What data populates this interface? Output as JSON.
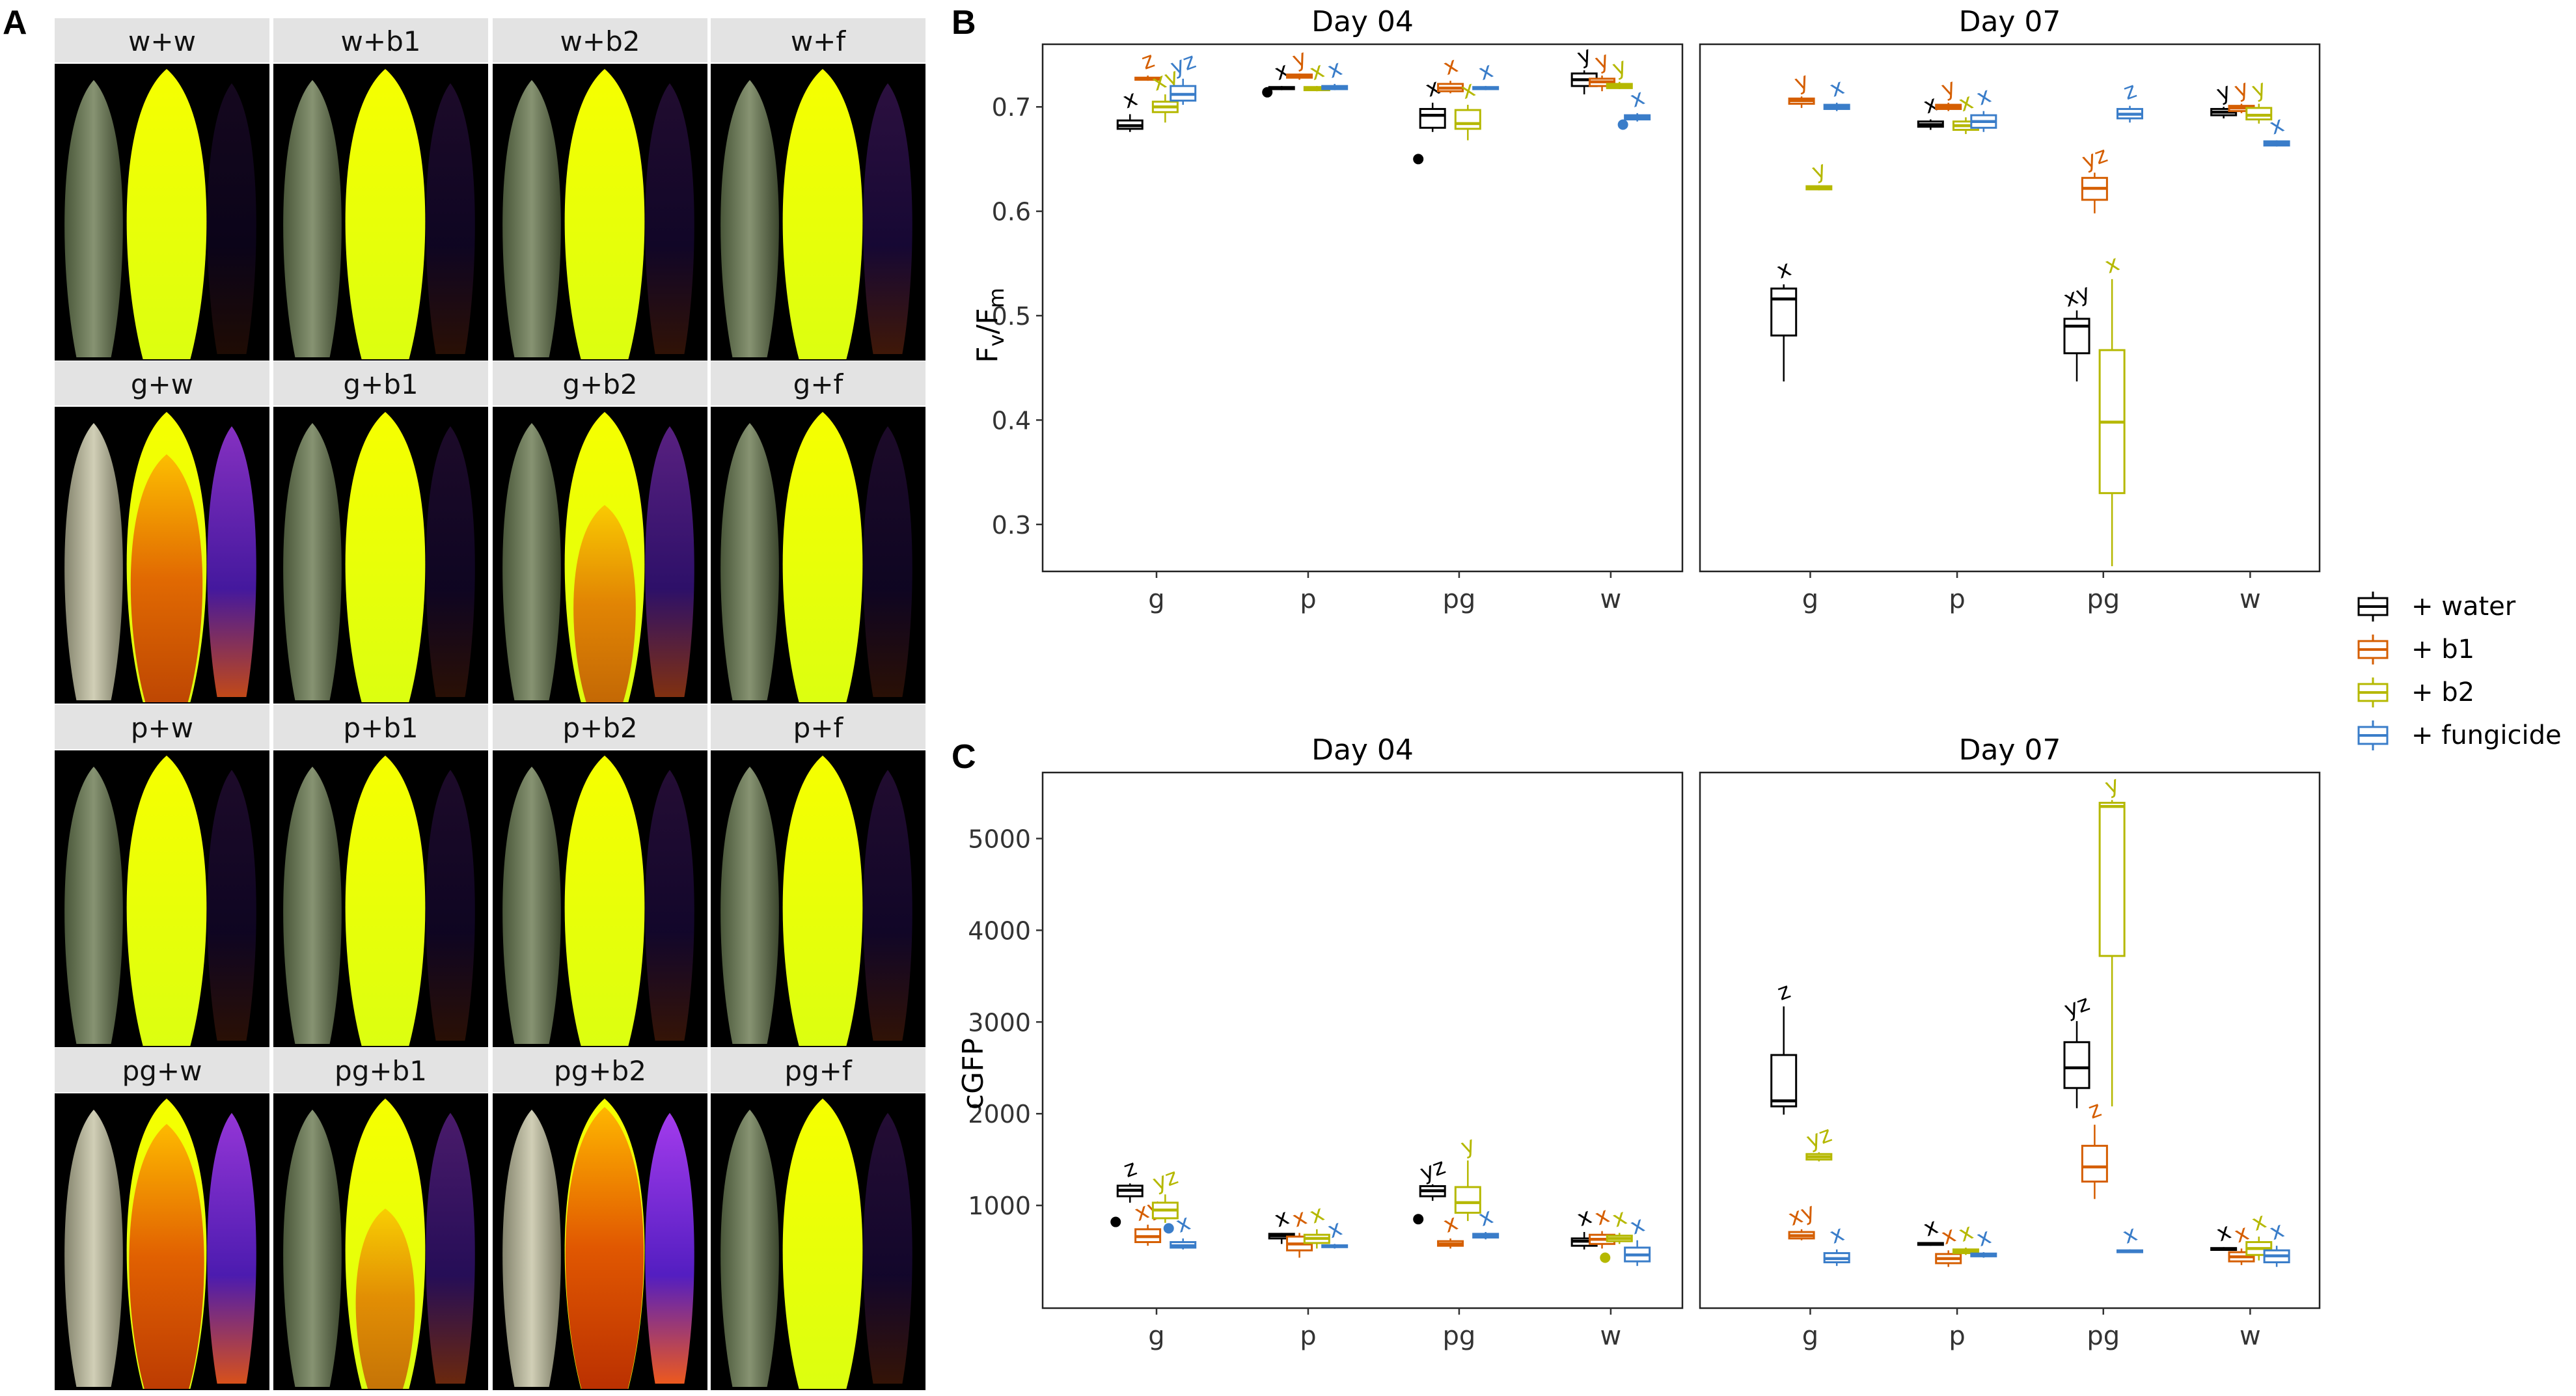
{
  "panel_labels": [
    "A",
    "B",
    "C"
  ],
  "image_grid": {
    "rows": [
      [
        "w+w",
        "w+b1",
        "w+b2",
        "w+f"
      ],
      [
        "g+w",
        "g+b1",
        "g+b2",
        "g+f"
      ],
      [
        "p+w",
        "p+b1",
        "p+b2",
        "p+f"
      ],
      [
        "pg+w",
        "pg+b1",
        "pg+b2",
        "pg+f"
      ]
    ],
    "severity": [
      [
        0.0,
        0.05,
        0.08,
        0.15
      ],
      [
        0.75,
        0.05,
        0.45,
        0.05
      ],
      [
        0.05,
        0.05,
        0.1,
        0.08
      ],
      [
        0.85,
        0.35,
        0.95,
        0.1
      ]
    ]
  },
  "legend": {
    "items": [
      {
        "label": "+ water",
        "color": "#000000"
      },
      {
        "label": "+ b1",
        "color": "#D55E00"
      },
      {
        "label": "+ b2",
        "color": "#B5B800"
      },
      {
        "label": "+ fungicide",
        "color": "#3A7DC9"
      }
    ]
  },
  "chart_data": [
    {
      "type": "boxplot",
      "panel": "B",
      "ylabel_main": "F",
      "ylabel_sub1": "v",
      "ylabel_sep": "/F",
      "ylabel_sub2": "m",
      "ylim": [
        0.255,
        0.76
      ],
      "yticks": [
        0.3,
        0.4,
        0.5,
        0.6,
        0.7
      ],
      "ytick_labels": [
        "0.3",
        "0.4",
        "0.5",
        "0.6",
        "0.7"
      ],
      "categories": [
        "g",
        "p",
        "pg",
        "w"
      ],
      "series_names": [
        "+ water",
        "+ b1",
        "+ b2",
        "+ fungicide"
      ],
      "facets": [
        {
          "title": "Day 04",
          "boxes": [
            [
              {
                "min": 0.676,
                "q1": 0.679,
                "med": 0.682,
                "q3": 0.687,
                "max": 0.693,
                "out": [],
                "letter": "x"
              },
              {
                "min": 0.725,
                "q1": 0.726,
                "med": 0.727,
                "q3": 0.728,
                "max": 0.73,
                "out": [],
                "letter": "z"
              },
              {
                "min": 0.685,
                "q1": 0.695,
                "med": 0.7,
                "q3": 0.705,
                "max": 0.712,
                "out": [],
                "letter": "xy"
              },
              {
                "min": 0.702,
                "q1": 0.706,
                "med": 0.712,
                "q3": 0.72,
                "max": 0.727,
                "out": [],
                "letter": "yz"
              }
            ],
            [
              {
                "min": 0.716,
                "q1": 0.717,
                "med": 0.718,
                "q3": 0.719,
                "max": 0.72,
                "out": [
                  0.714
                ],
                "letter": "x"
              },
              {
                "min": 0.726,
                "q1": 0.728,
                "med": 0.729,
                "q3": 0.731,
                "max": 0.732,
                "out": [],
                "letter": "y"
              },
              {
                "min": 0.715,
                "q1": 0.716,
                "med": 0.717,
                "q3": 0.719,
                "max": 0.72,
                "out": [],
                "letter": "x"
              },
              {
                "min": 0.716,
                "q1": 0.717,
                "med": 0.718,
                "q3": 0.72,
                "max": 0.722,
                "out": [],
                "letter": "x"
              }
            ],
            [
              {
                "min": 0.676,
                "q1": 0.68,
                "med": 0.692,
                "q3": 0.698,
                "max": 0.704,
                "out": [
                  0.65
                ],
                "letter": "x"
              },
              {
                "min": 0.713,
                "q1": 0.715,
                "med": 0.718,
                "q3": 0.722,
                "max": 0.725,
                "out": [],
                "letter": "x"
              },
              {
                "min": 0.668,
                "q1": 0.679,
                "med": 0.684,
                "q3": 0.697,
                "max": 0.702,
                "out": [],
                "letter": "x"
              },
              {
                "min": 0.716,
                "q1": 0.717,
                "med": 0.718,
                "q3": 0.719,
                "max": 0.72,
                "out": [],
                "letter": "x"
              }
            ],
            [
              {
                "min": 0.712,
                "q1": 0.72,
                "med": 0.726,
                "q3": 0.732,
                "max": 0.735,
                "out": [],
                "letter": "y"
              },
              {
                "min": 0.715,
                "q1": 0.72,
                "med": 0.724,
                "q3": 0.727,
                "max": 0.73,
                "out": [],
                "letter": "y"
              },
              {
                "min": 0.717,
                "q1": 0.718,
                "med": 0.72,
                "q3": 0.722,
                "max": 0.724,
                "out": [],
                "letter": "y"
              },
              {
                "min": 0.686,
                "q1": 0.688,
                "med": 0.69,
                "q3": 0.692,
                "max": 0.694,
                "out": [
                  0.683
                ],
                "letter": "x"
              }
            ]
          ]
        },
        {
          "title": "Day 07",
          "boxes": [
            [
              {
                "min": 0.437,
                "q1": 0.481,
                "med": 0.516,
                "q3": 0.526,
                "max": 0.53,
                "out": [],
                "letter": "x"
              },
              {
                "min": 0.699,
                "q1": 0.703,
                "med": 0.706,
                "q3": 0.708,
                "max": 0.71,
                "out": [],
                "letter": "y"
              },
              {
                "min": 0.62,
                "q1": 0.621,
                "med": 0.623,
                "q3": 0.624,
                "max": 0.625,
                "out": [],
                "letter": "y"
              },
              {
                "min": 0.696,
                "q1": 0.698,
                "med": 0.7,
                "q3": 0.702,
                "max": 0.704,
                "out": [],
                "letter": "x"
              }
            ],
            [
              {
                "min": 0.678,
                "q1": 0.681,
                "med": 0.683,
                "q3": 0.686,
                "max": 0.688,
                "out": [],
                "letter": "x"
              },
              {
                "min": 0.696,
                "q1": 0.698,
                "med": 0.7,
                "q3": 0.702,
                "max": 0.704,
                "out": [],
                "letter": "y"
              },
              {
                "min": 0.674,
                "q1": 0.678,
                "med": 0.682,
                "q3": 0.686,
                "max": 0.69,
                "out": [],
                "letter": "x"
              },
              {
                "min": 0.676,
                "q1": 0.68,
                "med": 0.686,
                "q3": 0.692,
                "max": 0.696,
                "out": [],
                "letter": "x"
              }
            ],
            [
              {
                "min": 0.437,
                "q1": 0.464,
                "med": 0.49,
                "q3": 0.497,
                "max": 0.505,
                "out": [],
                "letter": "xy"
              },
              {
                "min": 0.598,
                "q1": 0.611,
                "med": 0.622,
                "q3": 0.632,
                "max": 0.637,
                "out": [],
                "letter": "yz"
              },
              {
                "min": 0.26,
                "q1": 0.33,
                "med": 0.398,
                "q3": 0.467,
                "max": 0.535,
                "out": [],
                "letter": "x"
              },
              {
                "min": 0.685,
                "q1": 0.689,
                "med": 0.693,
                "q3": 0.698,
                "max": 0.701,
                "out": [],
                "letter": "z"
              }
            ],
            [
              {
                "min": 0.689,
                "q1": 0.692,
                "med": 0.695,
                "q3": 0.698,
                "max": 0.7,
                "out": [],
                "letter": "y"
              },
              {
                "min": 0.694,
                "q1": 0.696,
                "med": 0.699,
                "q3": 0.701,
                "max": 0.703,
                "out": [],
                "letter": "y"
              },
              {
                "min": 0.684,
                "q1": 0.688,
                "med": 0.692,
                "q3": 0.699,
                "max": 0.703,
                "out": [],
                "letter": "y"
              },
              {
                "min": 0.662,
                "q1": 0.663,
                "med": 0.665,
                "q3": 0.667,
                "max": 0.668,
                "out": [],
                "letter": "x"
              }
            ]
          ]
        }
      ]
    },
    {
      "type": "boxplot",
      "panel": "C",
      "ylabel": "cGFP",
      "ylim": [
        -120,
        5720
      ],
      "yticks": [
        1000,
        2000,
        3000,
        4000,
        5000
      ],
      "ytick_labels": [
        "1000",
        "2000",
        "3000",
        "4000",
        "5000"
      ],
      "categories": [
        "g",
        "p",
        "pg",
        "w"
      ],
      "series_names": [
        "+ water",
        "+ b1",
        "+ b2",
        "+ fungicide"
      ],
      "facets": [
        {
          "title": "Day 04",
          "boxes": [
            [
              {
                "min": 1030,
                "q1": 1100,
                "med": 1165,
                "q3": 1215,
                "max": 1240,
                "out": [
                  820
                ],
                "letter": "z"
              },
              {
                "min": 560,
                "q1": 600,
                "med": 660,
                "q3": 740,
                "max": 790,
                "out": [],
                "letter": "xy"
              },
              {
                "min": 810,
                "q1": 860,
                "med": 950,
                "q3": 1030,
                "max": 1120,
                "out": [],
                "letter": "yz"
              },
              {
                "min": 520,
                "q1": 540,
                "med": 560,
                "q3": 600,
                "max": 640,
                "out": [
                  750
                ],
                "letter": "x"
              }
            ],
            [
              {
                "min": 580,
                "q1": 640,
                "med": 670,
                "q3": 690,
                "max": 700,
                "out": [],
                "letter": "x"
              },
              {
                "min": 430,
                "q1": 510,
                "med": 580,
                "q3": 660,
                "max": 700,
                "out": [],
                "letter": "x"
              },
              {
                "min": 530,
                "q1": 590,
                "med": 640,
                "q3": 680,
                "max": 740,
                "out": [],
                "letter": "x"
              },
              {
                "min": 530,
                "q1": 545,
                "med": 555,
                "q3": 565,
                "max": 580,
                "out": [],
                "letter": "x"
              }
            ],
            [
              {
                "min": 1050,
                "q1": 1100,
                "med": 1160,
                "q3": 1210,
                "max": 1230,
                "out": [
                  850
                ],
                "letter": "yz"
              },
              {
                "min": 530,
                "q1": 560,
                "med": 580,
                "q3": 610,
                "max": 640,
                "out": [],
                "letter": "x"
              },
              {
                "min": 830,
                "q1": 920,
                "med": 1030,
                "q3": 1200,
                "max": 1490,
                "out": [],
                "letter": "y"
              },
              {
                "min": 630,
                "q1": 650,
                "med": 670,
                "q3": 690,
                "max": 710,
                "out": [],
                "letter": "x"
              }
            ],
            [
              {
                "min": 520,
                "q1": 560,
                "med": 610,
                "q3": 640,
                "max": 710,
                "out": [],
                "letter": "x"
              },
              {
                "min": 530,
                "q1": 580,
                "med": 630,
                "q3": 680,
                "max": 720,
                "out": [],
                "letter": "x"
              },
              {
                "min": 580,
                "q1": 610,
                "med": 640,
                "q3": 670,
                "max": 700,
                "out": [
                  430
                ],
                "letter": "x"
              },
              {
                "min": 340,
                "q1": 390,
                "med": 460,
                "q3": 540,
                "max": 620,
                "out": [],
                "letter": "x"
              }
            ]
          ]
        },
        {
          "title": "Day 07",
          "boxes": [
            [
              {
                "min": 1990,
                "q1": 2080,
                "med": 2140,
                "q3": 2640,
                "max": 3170,
                "out": [],
                "letter": "z"
              },
              {
                "min": 620,
                "q1": 640,
                "med": 670,
                "q3": 710,
                "max": 740,
                "out": [],
                "letter": "xy"
              },
              {
                "min": 1480,
                "q1": 1500,
                "med": 1530,
                "q3": 1560,
                "max": 1580,
                "out": [],
                "letter": "yz"
              },
              {
                "min": 340,
                "q1": 380,
                "med": 420,
                "q3": 480,
                "max": 520,
                "out": [],
                "letter": "x"
              }
            ],
            [
              {
                "min": 560,
                "q1": 570,
                "med": 580,
                "q3": 590,
                "max": 600,
                "out": [],
                "letter": "x"
              },
              {
                "min": 330,
                "q1": 370,
                "med": 420,
                "q3": 470,
                "max": 510,
                "out": [],
                "letter": "x"
              },
              {
                "min": 460,
                "q1": 480,
                "med": 500,
                "q3": 520,
                "max": 540,
                "out": [],
                "letter": "x"
              },
              {
                "min": 430,
                "q1": 445,
                "med": 460,
                "q3": 475,
                "max": 490,
                "out": [],
                "letter": "x"
              }
            ],
            [
              {
                "min": 2060,
                "q1": 2280,
                "med": 2500,
                "q3": 2780,
                "max": 3010,
                "out": [],
                "letter": "yz"
              },
              {
                "min": 1070,
                "q1": 1260,
                "med": 1420,
                "q3": 1650,
                "max": 1880,
                "out": [],
                "letter": "z"
              },
              {
                "min": 2080,
                "q1": 3720,
                "med": 5350,
                "q3": 5390,
                "max": 5420,
                "out": [],
                "letter": "y"
              },
              {
                "min": 480,
                "q1": 490,
                "med": 500,
                "q3": 510,
                "max": 520,
                "out": [],
                "letter": "x"
              }
            ],
            [
              {
                "min": 510,
                "q1": 515,
                "med": 525,
                "q3": 535,
                "max": 545,
                "out": [],
                "letter": "x"
              },
              {
                "min": 350,
                "q1": 390,
                "med": 440,
                "q3": 490,
                "max": 530,
                "out": [],
                "letter": "x"
              },
              {
                "min": 400,
                "q1": 460,
                "med": 530,
                "q3": 600,
                "max": 660,
                "out": [],
                "letter": "x"
              },
              {
                "min": 330,
                "q1": 380,
                "med": 450,
                "q3": 510,
                "max": 560,
                "out": [],
                "letter": "x"
              }
            ]
          ]
        }
      ]
    }
  ]
}
